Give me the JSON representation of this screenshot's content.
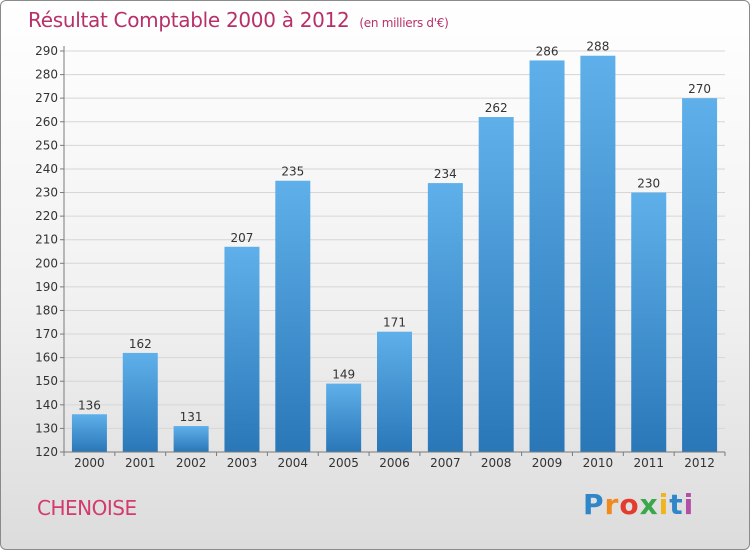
{
  "header": {
    "title": "Résultat Comptable 2000 à 2012",
    "unit": "(en milliers d'€)"
  },
  "footer": {
    "commune": "CHENOISE",
    "logo": {
      "letters": [
        "P",
        "r",
        "o",
        "x",
        "i",
        "t",
        "i"
      ],
      "colors": [
        "#2f86c8",
        "#f08a1c",
        "#e43b2f",
        "#3aa84a",
        "#f0b51c",
        "#2f86c8",
        "#b34fa6"
      ]
    }
  },
  "colors": {
    "bar_top": "#5fb0ea",
    "bar_bottom": "#2a77b8",
    "grid": "#d6d6d6",
    "axis": "#7a7a7a"
  },
  "chart_data": {
    "type": "bar",
    "categories": [
      "2000",
      "2001",
      "2002",
      "2003",
      "2004",
      "2005",
      "2006",
      "2007",
      "2008",
      "2009",
      "2010",
      "2011",
      "2012"
    ],
    "values": [
      136,
      162,
      131,
      207,
      235,
      149,
      171,
      234,
      262,
      286,
      288,
      230,
      270
    ],
    "ylim": [
      120,
      290
    ],
    "yticks": [
      120,
      130,
      140,
      150,
      160,
      170,
      180,
      190,
      200,
      210,
      220,
      230,
      240,
      250,
      260,
      270,
      280,
      290
    ],
    "grid": true,
    "data_labels": true
  }
}
